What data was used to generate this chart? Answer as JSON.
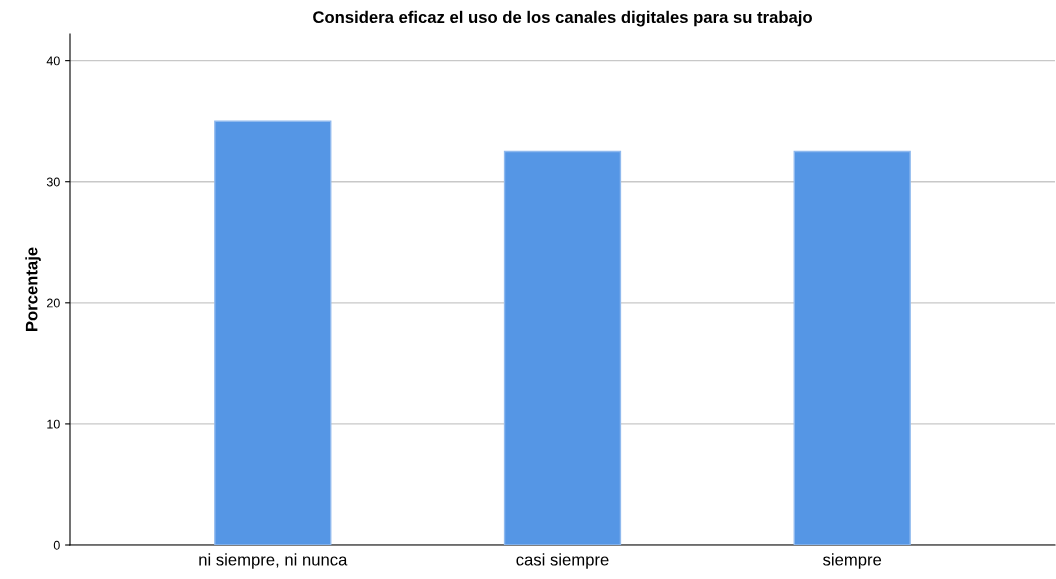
{
  "chart_data": {
    "type": "bar",
    "title": "Considera eficaz el uso de los canales digitales para su trabajo",
    "ylabel": "Porcentaje",
    "categories": [
      "ni siempre, ni nunca",
      "casi siempre",
      "siempre"
    ],
    "values": [
      35,
      32.5,
      32.5
    ],
    "color": "#5596e5",
    "ylim": [
      0,
      42.2
    ],
    "yticks": [
      0,
      10,
      20,
      30,
      40
    ],
    "grid": "y"
  }
}
